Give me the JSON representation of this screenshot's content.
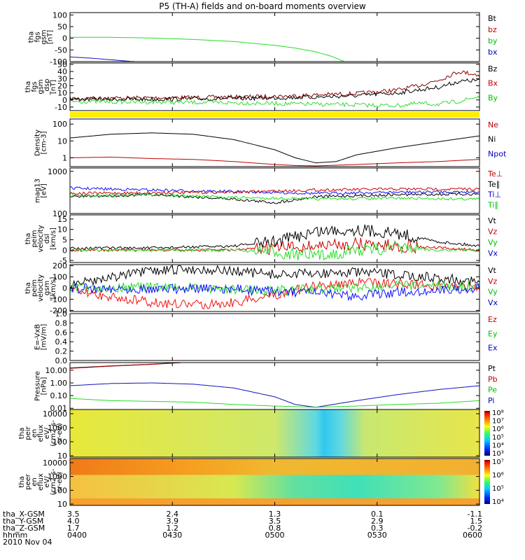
{
  "title": "P5 (TH-A) fields and on-board moments overview",
  "colorbars": [
    {
      "panel": 8,
      "labels": [
        "10⁸",
        "10⁷",
        "10⁶",
        "10⁵",
        "10⁴",
        "10³"
      ]
    },
    {
      "panel": 9,
      "labels": [
        "10⁷",
        "10⁶",
        "10⁵",
        "10⁴"
      ]
    }
  ],
  "footer": {
    "rows": [
      {
        "label": "tha_X-GSM",
        "values": [
          "3.5",
          "2.4",
          "1.3",
          "0.1",
          "-1.1"
        ]
      },
      {
        "label": "tha_Y-GSM",
        "values": [
          "4.0",
          "3.9",
          "3.5",
          "2.9",
          "1.5"
        ]
      },
      {
        "label": "tha_Z-GSM",
        "values": [
          "1.7",
          "1.2",
          "0.8",
          "0.3",
          "-0.2"
        ]
      },
      {
        "label": "hhmm",
        "values": [
          "0400",
          "0430",
          "0500",
          "0530",
          "0600"
        ]
      }
    ],
    "date": "2010 Nov 04"
  },
  "chart_data": [
    {
      "type": "line",
      "ylabel": [
        "tha",
        "fgs",
        "gsm",
        "[nT]"
      ],
      "yticks": [
        "100",
        "50",
        "0",
        "-50",
        "-100"
      ],
      "ylim": [
        -100,
        110
      ],
      "legend": [
        {
          "name": "Bt",
          "color": "#000000"
        },
        {
          "name": "bz",
          "color": "#c00000"
        },
        {
          "name": "by",
          "color": "#00c000"
        },
        {
          "name": "bx",
          "color": "#0000c0"
        }
      ],
      "series": [
        {
          "name": "by",
          "color": "#22dd22",
          "x": [
            0,
            0.1,
            0.2,
            0.3,
            0.4,
            0.5,
            0.55,
            0.6,
            0.64,
            0.67
          ],
          "y": [
            4,
            4,
            1,
            -5,
            -14,
            -30,
            -42,
            -58,
            -78,
            -100
          ]
        },
        {
          "name": "bx",
          "color": "#1010c0",
          "x": [
            0,
            0.05,
            0.1,
            0.14,
            0.16
          ],
          "y": [
            -80,
            -85,
            -92,
            -98,
            -100
          ]
        }
      ]
    },
    {
      "type": "line",
      "ylabel": [
        "tha",
        "fgs",
        "gsm",
        "_dsp",
        "[nT]"
      ],
      "yticks": [
        "50",
        "40",
        "30",
        "20",
        "10",
        "0",
        "-10"
      ],
      "ylim": [
        -15,
        52
      ],
      "legend": [
        {
          "name": "Bz",
          "color": "#000000"
        },
        {
          "name": "Bx",
          "color": "#c00000"
        },
        {
          "name": "By",
          "color": "#00c000"
        }
      ],
      "series": [
        {
          "name": "Bx",
          "color": "#8b0000",
          "x": [
            0,
            0.2,
            0.4,
            0.5,
            0.6,
            0.7,
            0.8,
            0.85,
            0.9,
            0.95,
            1
          ],
          "y": [
            2,
            3,
            4,
            5,
            7,
            9,
            14,
            20,
            28,
            40,
            35
          ]
        },
        {
          "name": "Bz",
          "color": "#000000",
          "x": [
            0,
            0.2,
            0.4,
            0.5,
            0.6,
            0.7,
            0.8,
            0.85,
            0.9,
            0.95,
            1
          ],
          "y": [
            1,
            1,
            2,
            3,
            4,
            6,
            10,
            14,
            18,
            26,
            28
          ]
        },
        {
          "name": "By",
          "color": "#33dd33",
          "x": [
            0,
            0.2,
            0.4,
            0.5,
            0.6,
            0.7,
            0.8,
            0.85,
            0.9,
            0.95,
            1
          ],
          "y": [
            -2,
            -3,
            -4,
            -5,
            -6,
            -7,
            -8,
            -5,
            -6,
            -2,
            5
          ]
        }
      ]
    },
    {
      "type": "line",
      "ylabel": [
        "Density",
        "[cm-3]"
      ],
      "yticks": [
        "100",
        "10",
        "1"
      ],
      "log": true,
      "ylim": [
        0.3,
        200
      ],
      "legend": [
        {
          "name": "Ne",
          "color": "#c00000"
        },
        {
          "name": "Ni",
          "color": "#000000"
        },
        {
          "name": "Npot",
          "color": "#0000c0"
        }
      ],
      "series": [
        {
          "name": "Ni",
          "color": "#000000",
          "x": [
            0,
            0.1,
            0.2,
            0.3,
            0.4,
            0.5,
            0.55,
            0.6,
            0.65,
            0.7,
            0.8,
            0.9,
            1
          ],
          "y": [
            15,
            25,
            30,
            25,
            12,
            3,
            1,
            0.5,
            0.6,
            1.5,
            4,
            9,
            20
          ]
        },
        {
          "name": "Ne",
          "color": "#c00000",
          "x": [
            0,
            0.1,
            0.2,
            0.3,
            0.4,
            0.5,
            0.55,
            0.6,
            0.7,
            0.8,
            0.9,
            1
          ],
          "y": [
            1,
            1.1,
            0.9,
            0.8,
            0.6,
            0.4,
            0.35,
            0.33,
            0.4,
            0.5,
            0.6,
            0.8
          ]
        }
      ]
    },
    {
      "type": "line",
      "ylabel": [
        "mag13",
        "[eV]"
      ],
      "yticks": [
        "1000",
        "100"
      ],
      "log": true,
      "ylim": [
        100,
        1200
      ],
      "legend": [
        {
          "name": "Te⊥",
          "color": "#c00000"
        },
        {
          "name": "Te∥",
          "color": "#000000"
        },
        {
          "name": "Ti⊥",
          "color": "#0000c0"
        },
        {
          "name": "Ti∥",
          "color": "#00c000"
        }
      ],
      "series": [
        {
          "name": "Ti⊥",
          "color": "#1010ff",
          "x": [
            0,
            0.2,
            0.4,
            0.6,
            0.8,
            1
          ],
          "y": [
            400,
            360,
            330,
            300,
            320,
            330
          ]
        },
        {
          "name": "Te⊥",
          "color": "#cc0000",
          "x": [
            0,
            0.2,
            0.4,
            0.6,
            0.8,
            1
          ],
          "y": [
            300,
            310,
            320,
            360,
            380,
            380
          ]
        },
        {
          "name": "Te∥",
          "color": "#000000",
          "x": [
            0,
            0.2,
            0.4,
            0.5,
            0.6,
            0.8,
            1
          ],
          "y": [
            250,
            280,
            220,
            180,
            250,
            280,
            290
          ]
        },
        {
          "name": "Ti∥",
          "color": "#22dd22",
          "x": [
            0,
            0.2,
            0.4,
            0.6,
            0.8,
            1
          ],
          "y": [
            260,
            280,
            240,
            220,
            230,
            220
          ]
        }
      ]
    },
    {
      "type": "line",
      "ylabel": [
        "tha",
        "peim",
        "velocity",
        "dsl",
        "[km/s]"
      ],
      "yticks": [
        "15",
        "10",
        "5",
        "0",
        "-5"
      ],
      "ylim": [
        -6,
        17
      ],
      "legend": [
        {
          "name": "Vt",
          "color": "#000000"
        },
        {
          "name": "Vz",
          "color": "#c00000"
        },
        {
          "name": "Vy",
          "color": "#00c000"
        },
        {
          "name": "Vx",
          "color": "#0000c0"
        }
      ],
      "series": [
        {
          "name": "Vt",
          "color": "#000000",
          "x": [
            0,
            0.2,
            0.4,
            0.5,
            0.6,
            0.7,
            0.8,
            0.9,
            1
          ],
          "y": [
            1,
            1,
            2,
            4,
            9,
            10,
            8,
            4,
            2
          ]
        },
        {
          "name": "Vz",
          "color": "#cc0000",
          "x": [
            0,
            0.2,
            0.4,
            0.5,
            0.6,
            0.7,
            0.8,
            0.9,
            1
          ],
          "y": [
            0,
            0,
            0,
            1,
            2,
            3,
            2,
            1,
            0
          ]
        },
        {
          "name": "Vy",
          "color": "#22dd22",
          "x": [
            0,
            0.2,
            0.4,
            0.5,
            0.6,
            0.7,
            0.8,
            0.9,
            1
          ],
          "y": [
            0,
            0,
            0,
            -1,
            -3,
            0,
            1,
            0,
            0
          ]
        }
      ]
    },
    {
      "type": "line",
      "ylabel": [
        "tha",
        "peim",
        "velocity",
        "gsm",
        "[km/s]"
      ],
      "yticks": [
        "200",
        "100",
        "0",
        "-100",
        "-200"
      ],
      "ylim": [
        -210,
        210
      ],
      "legend": [
        {
          "name": "Vt",
          "color": "#000000"
        },
        {
          "name": "Vz",
          "color": "#c00000"
        },
        {
          "name": "Vy",
          "color": "#00c000"
        },
        {
          "name": "Vx",
          "color": "#0000c0"
        }
      ],
      "series": [
        {
          "name": "Vt",
          "color": "#000000",
          "x": [
            0,
            0.1,
            0.2,
            0.3,
            0.4,
            0.5,
            0.6,
            0.7,
            0.8,
            0.9,
            1
          ],
          "y": [
            30,
            100,
            150,
            170,
            150,
            120,
            130,
            140,
            120,
            90,
            60
          ]
        },
        {
          "name": "Vz",
          "color": "#ee1111",
          "x": [
            0,
            0.1,
            0.2,
            0.3,
            0.4,
            0.5,
            0.6,
            0.7,
            0.8,
            0.9,
            1
          ],
          "y": [
            -20,
            -80,
            -130,
            -150,
            -130,
            -60,
            20,
            50,
            40,
            20,
            10
          ]
        },
        {
          "name": "Vy",
          "color": "#22dd22",
          "x": [
            0,
            0.2,
            0.4,
            0.5,
            0.6,
            0.7,
            0.8,
            1
          ],
          "y": [
            0,
            10,
            -10,
            -20,
            -10,
            10,
            20,
            10
          ]
        },
        {
          "name": "Vx",
          "color": "#1010ff",
          "x": [
            0,
            0.2,
            0.4,
            0.5,
            0.6,
            0.7,
            0.8,
            1
          ],
          "y": [
            0,
            -5,
            -10,
            -30,
            -50,
            -70,
            -40,
            0
          ]
        }
      ]
    },
    {
      "type": "line",
      "ylabel": [
        "E=-VxB",
        "[mV/m]"
      ],
      "yticks": [
        "1.0",
        "0.8",
        "0.6",
        "0.4",
        "0.2",
        "0.0"
      ],
      "ylim": [
        0,
        1
      ],
      "legend": [
        {
          "name": "Ez",
          "color": "#c00000"
        },
        {
          "name": "Ey",
          "color": "#00c000"
        },
        {
          "name": "Ex",
          "color": "#0000c0"
        }
      ],
      "series": []
    },
    {
      "type": "line",
      "ylabel": [
        "Pressure",
        "[nPa]"
      ],
      "yticks": [
        "10.00",
        "1.00",
        "0.10",
        "0.01"
      ],
      "log": true,
      "ylim": [
        0.008,
        40
      ],
      "legend": [
        {
          "name": "Pt",
          "color": "#000000"
        },
        {
          "name": "Pb",
          "color": "#c00000"
        },
        {
          "name": "Pe",
          "color": "#00c000"
        },
        {
          "name": "Pi",
          "color": "#0000c0"
        }
      ],
      "series": [
        {
          "name": "Pt",
          "color": "#000000",
          "x": [
            0,
            0.1,
            0.2,
            0.27
          ],
          "y": [
            15,
            22,
            30,
            40
          ]
        },
        {
          "name": "Pb",
          "color": "#c00000",
          "x": [
            0,
            0.1,
            0.2,
            0.27
          ],
          "y": [
            14,
            21,
            29,
            39
          ]
        },
        {
          "name": "Pi",
          "color": "#1010c0",
          "x": [
            0,
            0.1,
            0.2,
            0.3,
            0.4,
            0.5,
            0.55,
            0.6,
            0.7,
            0.8,
            0.9,
            1
          ],
          "y": [
            0.6,
            0.9,
            1.0,
            0.8,
            0.4,
            0.08,
            0.02,
            0.012,
            0.04,
            0.12,
            0.3,
            0.6
          ]
        },
        {
          "name": "Pe",
          "color": "#22dd22",
          "x": [
            0,
            0.1,
            0.2,
            0.3,
            0.4,
            0.5,
            0.6,
            0.7,
            0.8,
            0.9,
            1
          ],
          "y": [
            0.06,
            0.04,
            0.035,
            0.03,
            0.02,
            0.015,
            0.012,
            0.015,
            0.02,
            0.025,
            0.04
          ]
        }
      ]
    },
    {
      "type": "heatmap",
      "ylabel": [
        "tha",
        "peir",
        "en",
        "eflux",
        "eV/",
        "(cm2-s-",
        "sr-eV)"
      ],
      "yticks": [
        "10000",
        "1000",
        "100",
        "10"
      ],
      "log": true,
      "ylim": [
        8,
        20000
      ]
    },
    {
      "type": "heatmap",
      "ylabel": [
        "tha",
        "peer",
        "en",
        "eflux",
        "eV/",
        "(cm2-s-",
        "sr-eV)"
      ],
      "yticks": [
        "10000",
        "1000",
        "100",
        "10"
      ],
      "log": true,
      "ylim": [
        8,
        20000
      ]
    }
  ]
}
